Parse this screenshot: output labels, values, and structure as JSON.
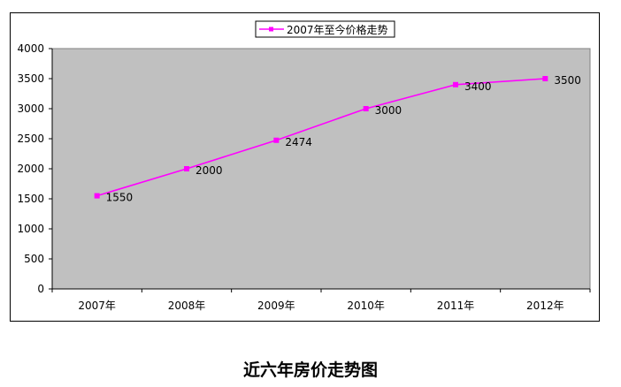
{
  "chart_data": {
    "type": "line",
    "categories": [
      "2007年",
      "2008年",
      "2009年",
      "2010年",
      "2011年",
      "2012年"
    ],
    "series": [
      {
        "name": "2007年至今价格走势",
        "values": [
          1550,
          2000,
          2474,
          3000,
          3400,
          3500
        ],
        "color": "#ff00ff"
      }
    ],
    "data_labels": [
      "1550",
      "2000",
      "2474",
      "3000",
      "3400",
      "3500"
    ],
    "ylim": [
      0,
      4000
    ],
    "yticks": [
      0,
      500,
      1000,
      1500,
      2000,
      2500,
      3000,
      3500,
      4000
    ],
    "grid": false,
    "plot_background": "#c0c0c0",
    "legend_position": "top"
  },
  "caption": "近六年房价走势图"
}
